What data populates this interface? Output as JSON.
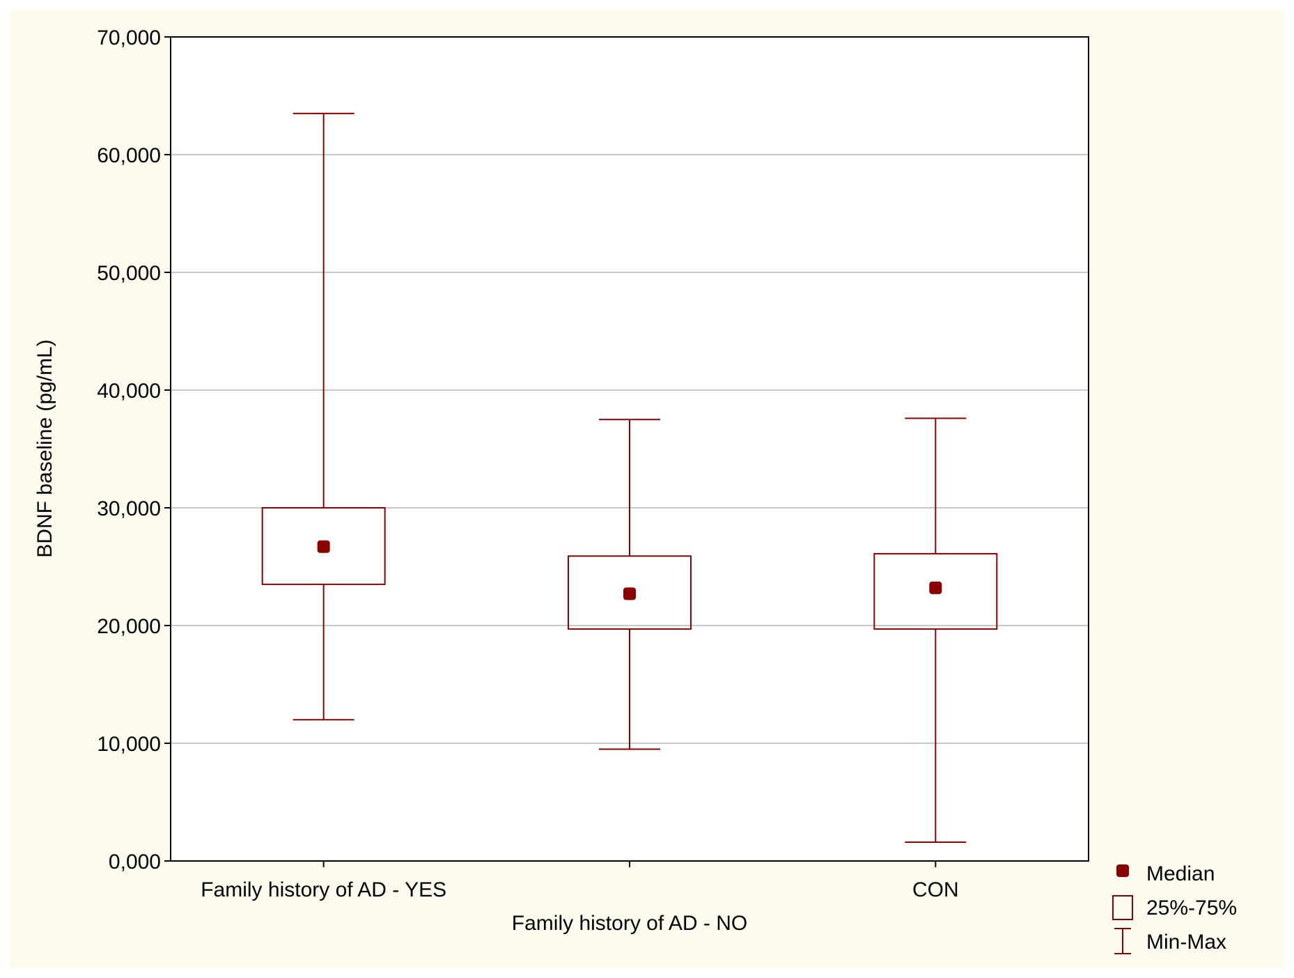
{
  "chart_data": {
    "type": "boxplot",
    "title": "",
    "xlabel": "",
    "ylabel": "BDNF baseline (pg/mL)",
    "ylim": [
      0,
      70000
    ],
    "yticks": [
      0,
      10000,
      20000,
      30000,
      40000,
      50000,
      60000,
      70000
    ],
    "ytick_labels": [
      "0,000",
      "10,000",
      "20,000",
      "30,000",
      "40,000",
      "50,000",
      "60,000",
      "70,000"
    ],
    "grid": true,
    "categories": [
      "Family history of AD - YES",
      "Family history of AD - NO",
      "CON"
    ],
    "boxes": [
      {
        "label": "Family history of AD - YES",
        "min": 12000,
        "q1": 23500,
        "median": 26700,
        "q3": 30000,
        "max": 63500
      },
      {
        "label": "Family history of AD - NO",
        "min": 9500,
        "q1": 19700,
        "median": 22700,
        "q3": 25900,
        "max": 37500
      },
      {
        "label": "CON",
        "min": 1600,
        "q1": 19700,
        "median": 23200,
        "q3": 26100,
        "max": 37600
      }
    ],
    "legend": {
      "position": "bottom-right",
      "entries": [
        {
          "symbol": "dot",
          "label": "Median"
        },
        {
          "symbol": "box",
          "label": "25%-75%"
        },
        {
          "symbol": "whisker",
          "label": "Min-Max"
        }
      ]
    },
    "colors": {
      "series": "#8b0000",
      "grid": "#c8c8c8",
      "background": "#fcfbee",
      "plot_background": "#ffffff"
    }
  }
}
